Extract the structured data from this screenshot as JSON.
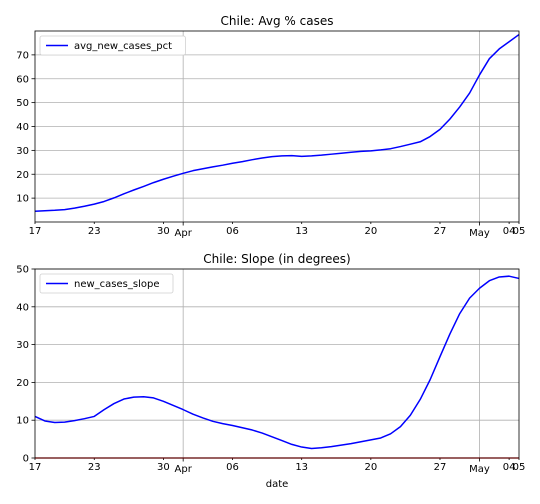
{
  "colors": {
    "line": "#0000ff",
    "zero_line": "#ff0000",
    "grid": "#b0b0b0",
    "axes": "#000000"
  },
  "chart_data": [
    {
      "type": "line",
      "title": "Chile: Avg % cases",
      "xlabel": "",
      "ylabel": "",
      "grid": true,
      "legend_position": "top-left",
      "xlim": [
        "2020-03-17",
        "2020-05-05"
      ],
      "ylim": [
        0,
        80
      ],
      "x_ticks": [
        {
          "date": "2020-03-17",
          "label": "17"
        },
        {
          "date": "2020-03-23",
          "label": "23"
        },
        {
          "date": "2020-03-30",
          "label": "30"
        },
        {
          "date": "2020-04-06",
          "label": "06"
        },
        {
          "date": "2020-04-13",
          "label": "13"
        },
        {
          "date": "2020-04-20",
          "label": "20"
        },
        {
          "date": "2020-04-27",
          "label": "27"
        },
        {
          "date": "2020-05-04",
          "label": "04"
        },
        {
          "date": "2020-05-05",
          "label": "05"
        }
      ],
      "month_labels": [
        {
          "date": "2020-04-01",
          "label": "Apr"
        },
        {
          "date": "2020-05-01",
          "label": "May"
        }
      ],
      "y_ticks": [
        10,
        20,
        30,
        40,
        50,
        60,
        70
      ],
      "series": [
        {
          "name": "avg_new_cases_pct",
          "x": [
            "2020-03-17",
            "2020-03-18",
            "2020-03-19",
            "2020-03-20",
            "2020-03-21",
            "2020-03-22",
            "2020-03-23",
            "2020-03-24",
            "2020-03-25",
            "2020-03-26",
            "2020-03-27",
            "2020-03-28",
            "2020-03-29",
            "2020-03-30",
            "2020-03-31",
            "2020-04-01",
            "2020-04-02",
            "2020-04-03",
            "2020-04-04",
            "2020-04-05",
            "2020-04-06",
            "2020-04-07",
            "2020-04-08",
            "2020-04-09",
            "2020-04-10",
            "2020-04-11",
            "2020-04-12",
            "2020-04-13",
            "2020-04-14",
            "2020-04-15",
            "2020-04-16",
            "2020-04-17",
            "2020-04-18",
            "2020-04-19",
            "2020-04-20",
            "2020-04-21",
            "2020-04-22",
            "2020-04-23",
            "2020-04-24",
            "2020-04-25",
            "2020-04-26",
            "2020-04-27",
            "2020-04-28",
            "2020-04-29",
            "2020-04-30",
            "2020-05-01",
            "2020-05-02",
            "2020-05-03",
            "2020-05-04",
            "2020-05-05"
          ],
          "values": [
            4.5,
            4.7,
            4.9,
            5.2,
            5.8,
            6.6,
            7.5,
            8.6,
            10.1,
            11.8,
            13.4,
            14.9,
            16.5,
            17.9,
            19.2,
            20.4,
            21.5,
            22.3,
            23.1,
            23.8,
            24.6,
            25.3,
            26.1,
            26.8,
            27.4,
            27.7,
            27.8,
            27.5,
            27.7,
            28.0,
            28.4,
            28.8,
            29.2,
            29.6,
            29.8,
            30.2,
            30.7,
            31.6,
            32.6,
            33.6,
            35.8,
            38.8,
            43.1,
            48.2,
            54.0,
            61.6,
            68.4,
            72.5,
            75.5,
            78.5
          ]
        }
      ]
    },
    {
      "type": "line",
      "title": "Chile: Slope (in degrees)",
      "xlabel": "date",
      "ylabel": "",
      "grid": true,
      "legend_position": "top-left",
      "xlim": [
        "2020-03-17",
        "2020-05-05"
      ],
      "ylim": [
        0,
        50
      ],
      "x_ticks": [
        {
          "date": "2020-03-17",
          "label": "17"
        },
        {
          "date": "2020-03-23",
          "label": "23"
        },
        {
          "date": "2020-03-30",
          "label": "30"
        },
        {
          "date": "2020-04-06",
          "label": "06"
        },
        {
          "date": "2020-04-13",
          "label": "13"
        },
        {
          "date": "2020-04-20",
          "label": "20"
        },
        {
          "date": "2020-04-27",
          "label": "27"
        },
        {
          "date": "2020-05-04",
          "label": "04"
        },
        {
          "date": "2020-05-05",
          "label": "05"
        }
      ],
      "month_labels": [
        {
          "date": "2020-04-01",
          "label": "Apr"
        },
        {
          "date": "2020-05-01",
          "label": "May"
        }
      ],
      "y_ticks": [
        0,
        10,
        20,
        30,
        40,
        50
      ],
      "hline": 0,
      "series": [
        {
          "name": "new_cases_slope",
          "x": [
            "2020-03-17",
            "2020-03-18",
            "2020-03-19",
            "2020-03-20",
            "2020-03-21",
            "2020-03-22",
            "2020-03-23",
            "2020-03-24",
            "2020-03-25",
            "2020-03-26",
            "2020-03-27",
            "2020-03-28",
            "2020-03-29",
            "2020-03-30",
            "2020-03-31",
            "2020-04-01",
            "2020-04-02",
            "2020-04-03",
            "2020-04-04",
            "2020-04-05",
            "2020-04-06",
            "2020-04-07",
            "2020-04-08",
            "2020-04-09",
            "2020-04-10",
            "2020-04-11",
            "2020-04-12",
            "2020-04-13",
            "2020-04-14",
            "2020-04-15",
            "2020-04-16",
            "2020-04-17",
            "2020-04-18",
            "2020-04-19",
            "2020-04-20",
            "2020-04-21",
            "2020-04-22",
            "2020-04-23",
            "2020-04-24",
            "2020-04-25",
            "2020-04-26",
            "2020-04-27",
            "2020-04-28",
            "2020-04-29",
            "2020-04-30",
            "2020-05-01",
            "2020-05-02",
            "2020-05-03",
            "2020-05-04",
            "2020-05-05"
          ],
          "values": [
            11.0,
            9.8,
            9.4,
            9.5,
            9.9,
            10.4,
            11.0,
            12.8,
            14.4,
            15.6,
            16.1,
            16.2,
            15.9,
            15.0,
            13.9,
            12.8,
            11.6,
            10.6,
            9.7,
            9.1,
            8.6,
            8.0,
            7.4,
            6.6,
            5.6,
            4.6,
            3.6,
            2.9,
            2.5,
            2.7,
            3.0,
            3.4,
            3.8,
            4.3,
            4.8,
            5.3,
            6.4,
            8.3,
            11.3,
            15.5,
            20.7,
            26.8,
            32.8,
            38.2,
            42.3,
            44.9,
            46.9,
            47.9,
            48.1,
            47.5
          ]
        }
      ]
    }
  ]
}
